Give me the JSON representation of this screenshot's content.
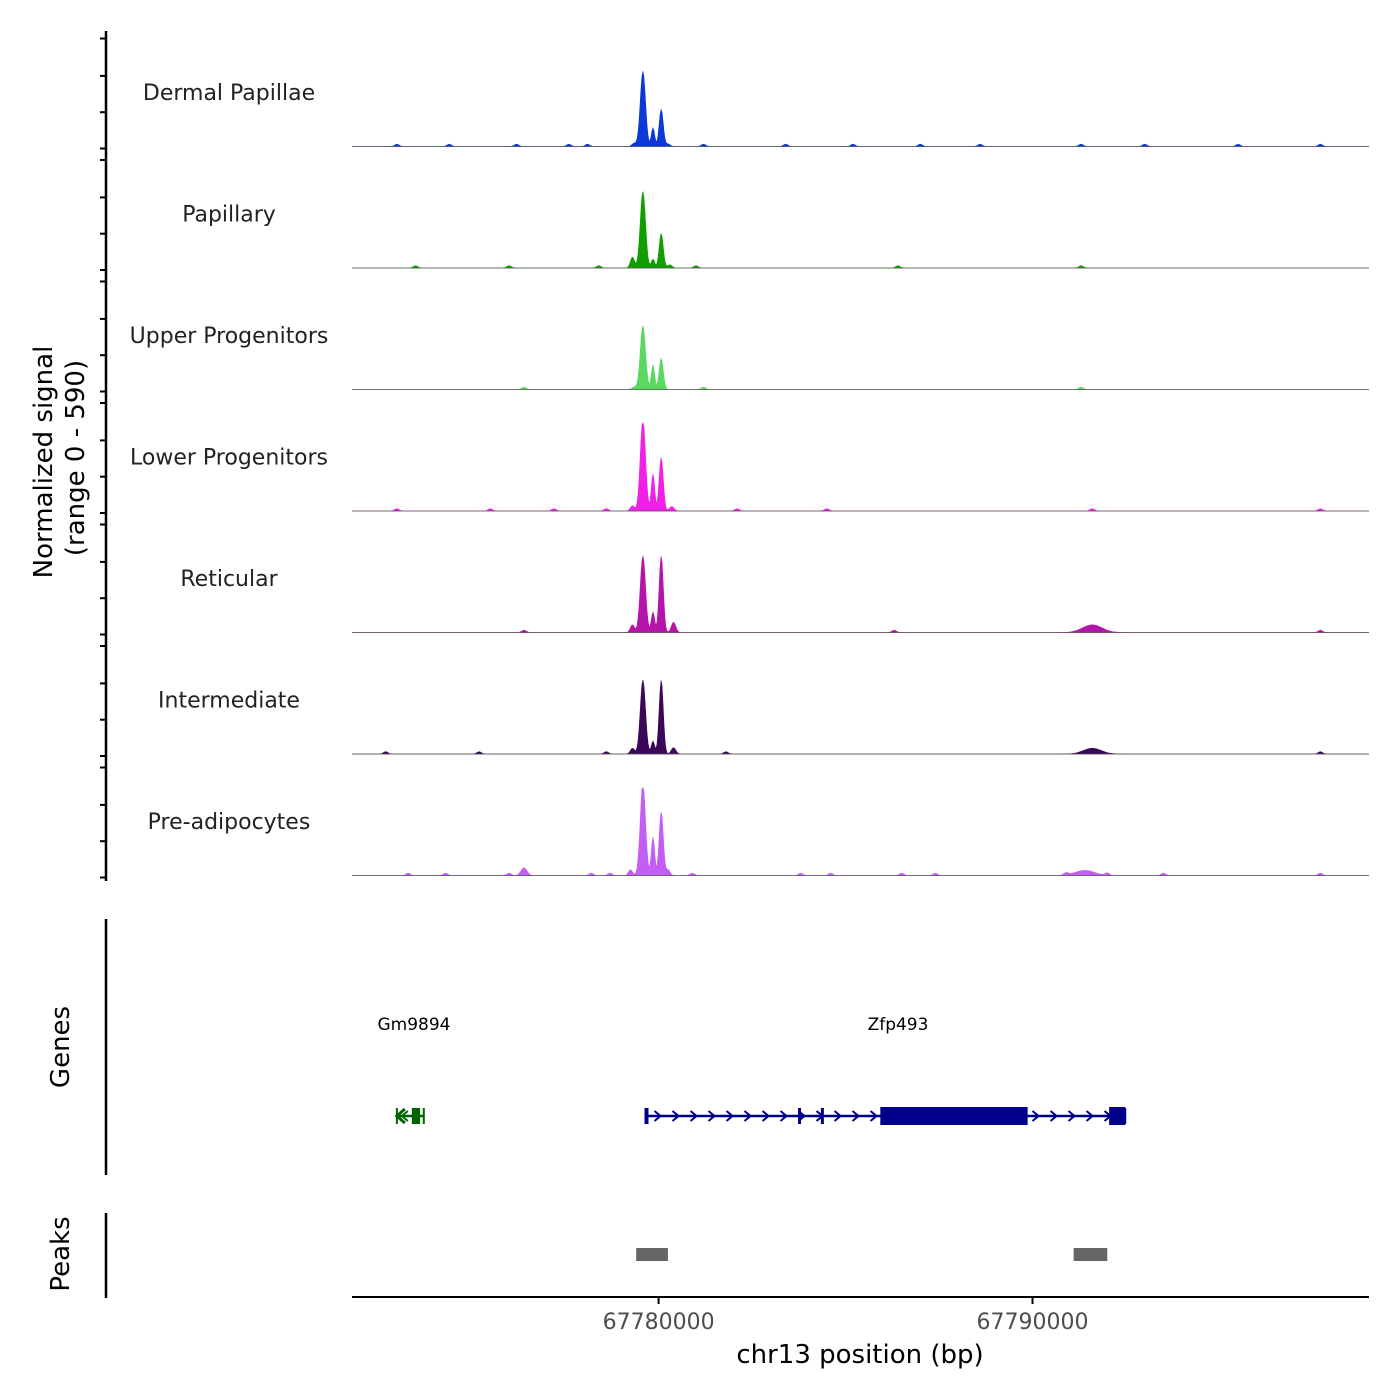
{
  "chart_data": {
    "type": "area",
    "title": "",
    "ylabel": "Normalized signal",
    "ylabel_range": "(range 0 - 590)",
    "ylim": [
      0,
      590
    ],
    "xlabel": "chr13 position (bp)",
    "xlim": [
      67771800,
      67799000
    ],
    "xticks": [
      67780000,
      67790000
    ],
    "xtick_labels": [
      "67780000",
      "67790000"
    ],
    "tracks": [
      {
        "name": "Dermal Papillae",
        "color": "#0b38d6",
        "peaks": [
          {
            "x": 67779580,
            "y": 590,
            "w": 70
          },
          {
            "x": 67779850,
            "y": 145,
            "w": 45
          },
          {
            "x": 67780070,
            "y": 290,
            "w": 55
          },
          {
            "x": 67779350,
            "y": 25,
            "w": 60
          },
          {
            "x": 67780250,
            "y": 20,
            "w": 60
          }
        ],
        "bumps": [
          67773000,
          67774400,
          67776200,
          67777600,
          67778100,
          67781200,
          67783400,
          67785200,
          67787000,
          67788600,
          67791300,
          67793000,
          67795500,
          67797700
        ]
      },
      {
        "name": "Papillary",
        "color": "#119e00",
        "peaks": [
          {
            "x": 67779580,
            "y": 600,
            "w": 70
          },
          {
            "x": 67779850,
            "y": 70,
            "w": 45
          },
          {
            "x": 67780070,
            "y": 270,
            "w": 55
          },
          {
            "x": 67779300,
            "y": 85,
            "w": 55
          },
          {
            "x": 67780300,
            "y": 25,
            "w": 60
          }
        ],
        "bumps": [
          67773500,
          67776000,
          67778400,
          67781000,
          67786400,
          67791300
        ]
      },
      {
        "name": "Upper Progenitors",
        "color": "#5bd860",
        "peaks": [
          {
            "x": 67779580,
            "y": 500,
            "w": 70
          },
          {
            "x": 67779850,
            "y": 190,
            "w": 45
          },
          {
            "x": 67780070,
            "y": 245,
            "w": 55
          },
          {
            "x": 67779350,
            "y": 20,
            "w": 60
          }
        ],
        "bumps": [
          67776400,
          67781200,
          67791300
        ]
      },
      {
        "name": "Lower Progenitors",
        "color": "#f020e8",
        "peaks": [
          {
            "x": 67779580,
            "y": 720,
            "w": 70
          },
          {
            "x": 67779850,
            "y": 290,
            "w": 45
          },
          {
            "x": 67780070,
            "y": 420,
            "w": 55
          },
          {
            "x": 67779300,
            "y": 40,
            "w": 55
          },
          {
            "x": 67780350,
            "y": 35,
            "w": 60
          }
        ],
        "bumps": [
          67773000,
          67775500,
          67777200,
          67778600,
          67782100,
          67784500,
          67791600,
          67797700
        ]
      },
      {
        "name": "Reticular",
        "color": "#b414a8",
        "peaks": [
          {
            "x": 67779580,
            "y": 600,
            "w": 70
          },
          {
            "x": 67779850,
            "y": 160,
            "w": 45
          },
          {
            "x": 67780070,
            "y": 600,
            "w": 55
          },
          {
            "x": 67779300,
            "y": 60,
            "w": 55
          },
          {
            "x": 67780400,
            "y": 80,
            "w": 60
          },
          {
            "x": 67791600,
            "y": 60,
            "w": 260
          }
        ],
        "bumps": [
          67776400,
          67786300,
          67797700
        ]
      },
      {
        "name": "Intermediate",
        "color": "#3b0758",
        "peaks": [
          {
            "x": 67779580,
            "y": 580,
            "w": 70
          },
          {
            "x": 67779850,
            "y": 100,
            "w": 45
          },
          {
            "x": 67780070,
            "y": 580,
            "w": 55
          },
          {
            "x": 67779300,
            "y": 45,
            "w": 55
          },
          {
            "x": 67780400,
            "y": 50,
            "w": 60
          },
          {
            "x": 67791600,
            "y": 45,
            "w": 240
          }
        ],
        "bumps": [
          67772700,
          67775200,
          67778600,
          67781800,
          67797700
        ]
      },
      {
        "name": "Pre-adipocytes",
        "color": "#c45df5",
        "peaks": [
          {
            "x": 67779580,
            "y": 720,
            "w": 70
          },
          {
            "x": 67779850,
            "y": 300,
            "w": 45
          },
          {
            "x": 67780070,
            "y": 500,
            "w": 55
          },
          {
            "x": 67779250,
            "y": 45,
            "w": 55
          },
          {
            "x": 67780250,
            "y": 45,
            "w": 55
          },
          {
            "x": 67776400,
            "y": 60,
            "w": 80
          },
          {
            "x": 67791400,
            "y": 40,
            "w": 260
          }
        ],
        "bumps": [
          67773300,
          67774300,
          67776000,
          67778200,
          67778700,
          67780900,
          67783800,
          67784600,
          67786500,
          67787400,
          67790900,
          67792000,
          67793500,
          67797700
        ]
      }
    ],
    "genes": {
      "label": "Genes",
      "items": [
        {
          "name": "Gm9894",
          "strand": "-",
          "color": "#006400",
          "start": 67773000,
          "end": 67773720,
          "exons": [
            [
              67773400,
              67773620
            ]
          ]
        },
        {
          "name": "Zfp493",
          "strand": "+",
          "color": "#00008b",
          "start": 67779650,
          "end": 67792480,
          "exons": [
            [
              67779650,
              67779700
            ],
            [
              67783730,
              67783810
            ],
            [
              67784340,
              67784420
            ],
            [
              67785930,
              67789870
            ],
            [
              67792050,
              67792480
            ]
          ]
        }
      ]
    },
    "peaks_track": {
      "label": "Peaks",
      "color": "#666666",
      "regions": [
        [
          67779400,
          67780250
        ],
        [
          67791100,
          67792000
        ]
      ]
    }
  }
}
